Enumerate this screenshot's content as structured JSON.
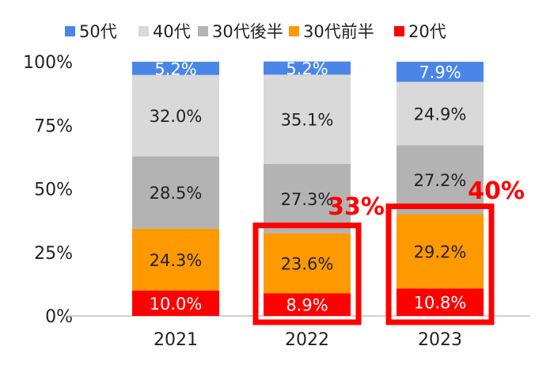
{
  "chart_data": {
    "type": "bar",
    "stacked": true,
    "categories": [
      "2021",
      "2022",
      "2023"
    ],
    "series": [
      {
        "name": "20代",
        "color": "#ff0000",
        "label_color": "#ffffff",
        "values": [
          10.0,
          8.9,
          10.8
        ],
        "labels": [
          "10.0%",
          "8.9%",
          "10.8%"
        ]
      },
      {
        "name": "30代前半",
        "color": "#ff9900",
        "label_color": "#222222",
        "values": [
          24.3,
          23.6,
          29.2
        ],
        "labels": [
          "24.3%",
          "23.6%",
          "29.2%"
        ]
      },
      {
        "name": "30代後半",
        "color": "#b3b3b3",
        "label_color": "#222222",
        "values": [
          28.5,
          27.3,
          27.2
        ],
        "labels": [
          "28.5%",
          "27.3%",
          "27.2%"
        ]
      },
      {
        "name": "40代",
        "color": "#d9d9d9",
        "label_color": "#222222",
        "values": [
          32.0,
          35.1,
          24.9
        ],
        "labels": [
          "32.0%",
          "35.1%",
          "24.9%"
        ]
      },
      {
        "name": "50代",
        "color": "#4a86e8",
        "label_color": "#ffffff",
        "values": [
          5.2,
          5.2,
          7.9
        ],
        "labels": [
          "5.2%",
          "5.2%",
          "7.9%"
        ]
      }
    ],
    "legend_order": [
      "50代",
      "40代",
      "30代後半",
      "30代前半",
      "20代"
    ],
    "legend_position": "top",
    "y_ticks": [
      "0%",
      "25%",
      "50%",
      "75%",
      "100%"
    ],
    "ylim": [
      0,
      100
    ],
    "grid": false,
    "annotations": [
      {
        "text": "33%",
        "category": "2022",
        "highlight_series": [
          "20代",
          "30代前半"
        ],
        "color": "#ff0000"
      },
      {
        "text": "40%",
        "category": "2023",
        "highlight_series": [
          "20代",
          "30代前半"
        ],
        "color": "#ff0000"
      }
    ]
  }
}
